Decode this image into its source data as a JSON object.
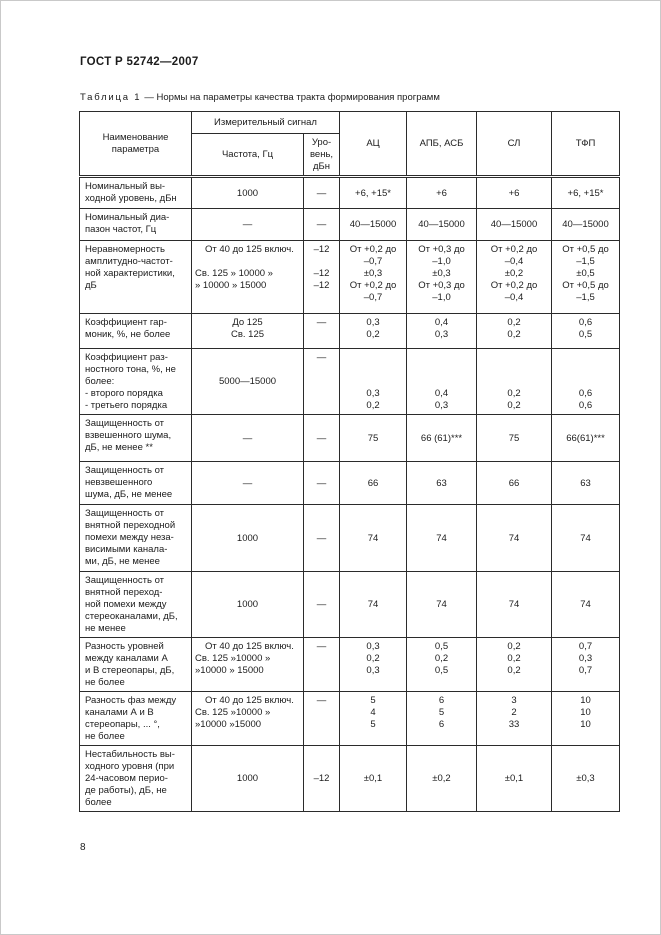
{
  "page": {
    "doc_code": "ГОСТ Р 52742—2007",
    "page_number": "8"
  },
  "table": {
    "caption_label": "Таблица 1",
    "caption_text": "— Нормы на параметры качества тракта формирования программ",
    "header": {
      "param": "Наименование\nпараметра",
      "signal_group": "Измерительный сигнал",
      "freq": "Частота, Гц",
      "level": "Уро-\nвень,\nдБн",
      "col_ac": "АЦ",
      "col_apb_asb": "АПБ, АСБ",
      "col_sl": "СЛ",
      "col_tfp": "ТФП"
    },
    "rows": [
      {
        "name": "Номинальный вы-\nходной уровень, дБн",
        "freq": "1000",
        "level": "—",
        "ac": "+6, +15*",
        "apb": "+6",
        "sl": "+6",
        "tfp": "+6, +15*"
      },
      {
        "name": "Номинальный диа-\nпазон частот, Гц",
        "freq": "—",
        "level": "—",
        "ac": "40—15000",
        "apb": "40—15000",
        "sl": "40—15000",
        "tfp": "40—15000"
      },
      {
        "name": "Неравномерность\nамплитудно-частот-\nной характеристики,\nдБ",
        "freq": "От 40 до 125 включ.\n\nСв. 125 » 10000 »\n» 10000 » 15000",
        "level": "–12\n\n–12\n–12",
        "ac": "От +0,2 до\n–0,7\n±0,3\nОт +0,2 до\n–0,7",
        "apb": "От +0,3 до\n–1,0\n±0,3\nОт +0,3 до\n–1,0",
        "sl": "От +0,2 до\n–0,4\n±0,2\nОт +0,2 до\n–0,4",
        "tfp": "От +0,5 до\n–1,5\n±0,5\nОт +0,5 до\n–1,5"
      },
      {
        "name": "Коэффициент гар-\nмоник, %, не более",
        "freq": "До 125\nСв. 125",
        "level": "—",
        "ac": "0,3\n0,2",
        "apb": "0,4\n0,3",
        "sl": "0,2\n0,2",
        "tfp": "0,6\n0,5"
      },
      {
        "name": "Коэффициент раз-\nностного тона, %, не\nболее:\n- второго порядка\n- третьего порядка",
        "freq": "\n\n5000—15000",
        "level": "—",
        "ac": "\n\n\n0,3\n0,2",
        "apb": "\n\n\n0,4\n0,3",
        "sl": "\n\n\n0,2\n0,2",
        "tfp": "\n\n\n0,6\n0,6"
      },
      {
        "name": "Защищенность от\nвзвешенного шума,\nдБ, не менее **",
        "freq": "—",
        "level": "—",
        "ac": "75",
        "apb": "66 (61)***",
        "sl": "75",
        "tfp": "66(61)***"
      },
      {
        "name": "Защищенность от\nневзвешенного\nшума, дБ, не менее",
        "freq": "—",
        "level": "—",
        "ac": "66",
        "apb": "63",
        "sl": "66",
        "tfp": "63"
      },
      {
        "name": "Защищенность от\nвнятной переходной\nпомехи между неза-\nвисимыми канала-\nми, дБ, не менее",
        "freq": "1000",
        "level": "—",
        "ac": "74",
        "apb": "74",
        "sl": "74",
        "tfp": "74"
      },
      {
        "name": "Защищенность от\nвнятной переход-\nной помехи между\nстереоканалами, дБ,\nне менее",
        "freq": "1000",
        "level": "—",
        "ac": "74",
        "apb": "74",
        "sl": "74",
        "tfp": "74"
      },
      {
        "name": "Разность уровней\nмежду каналами А\nи В стереопары, дБ,\nне более",
        "freq": "От 40 до 125 включ.\nСв. 125 »10000 »\n»10000 » 15000",
        "level": "—",
        "ac": "0,3\n0,2\n0,3",
        "apb": "0,5\n0,2\n0,5",
        "sl": "0,2\n0,2\n0,2",
        "tfp": "0,7\n0,3\n0,7"
      },
      {
        "name": "Разность фаз между\nканалами А и В\nстереопары, ... °,\nне более",
        "freq": "От 40 до 125 включ.\nСв. 125 »10000 »\n»10000 »15000",
        "level": "—",
        "ac": "5\n4\n5",
        "apb": "6\n5\n6",
        "sl": "3\n2\n33",
        "tfp": "10\n10\n10"
      },
      {
        "name": "Нестабильность вы-\nходного уровня (при\n24-часовом перио-\nде работы), дБ, не\nболее",
        "freq": "1000",
        "level": "–12",
        "ac": "±0,1",
        "apb": "±0,2",
        "sl": "±0,1",
        "tfp": "±0,3"
      }
    ]
  }
}
